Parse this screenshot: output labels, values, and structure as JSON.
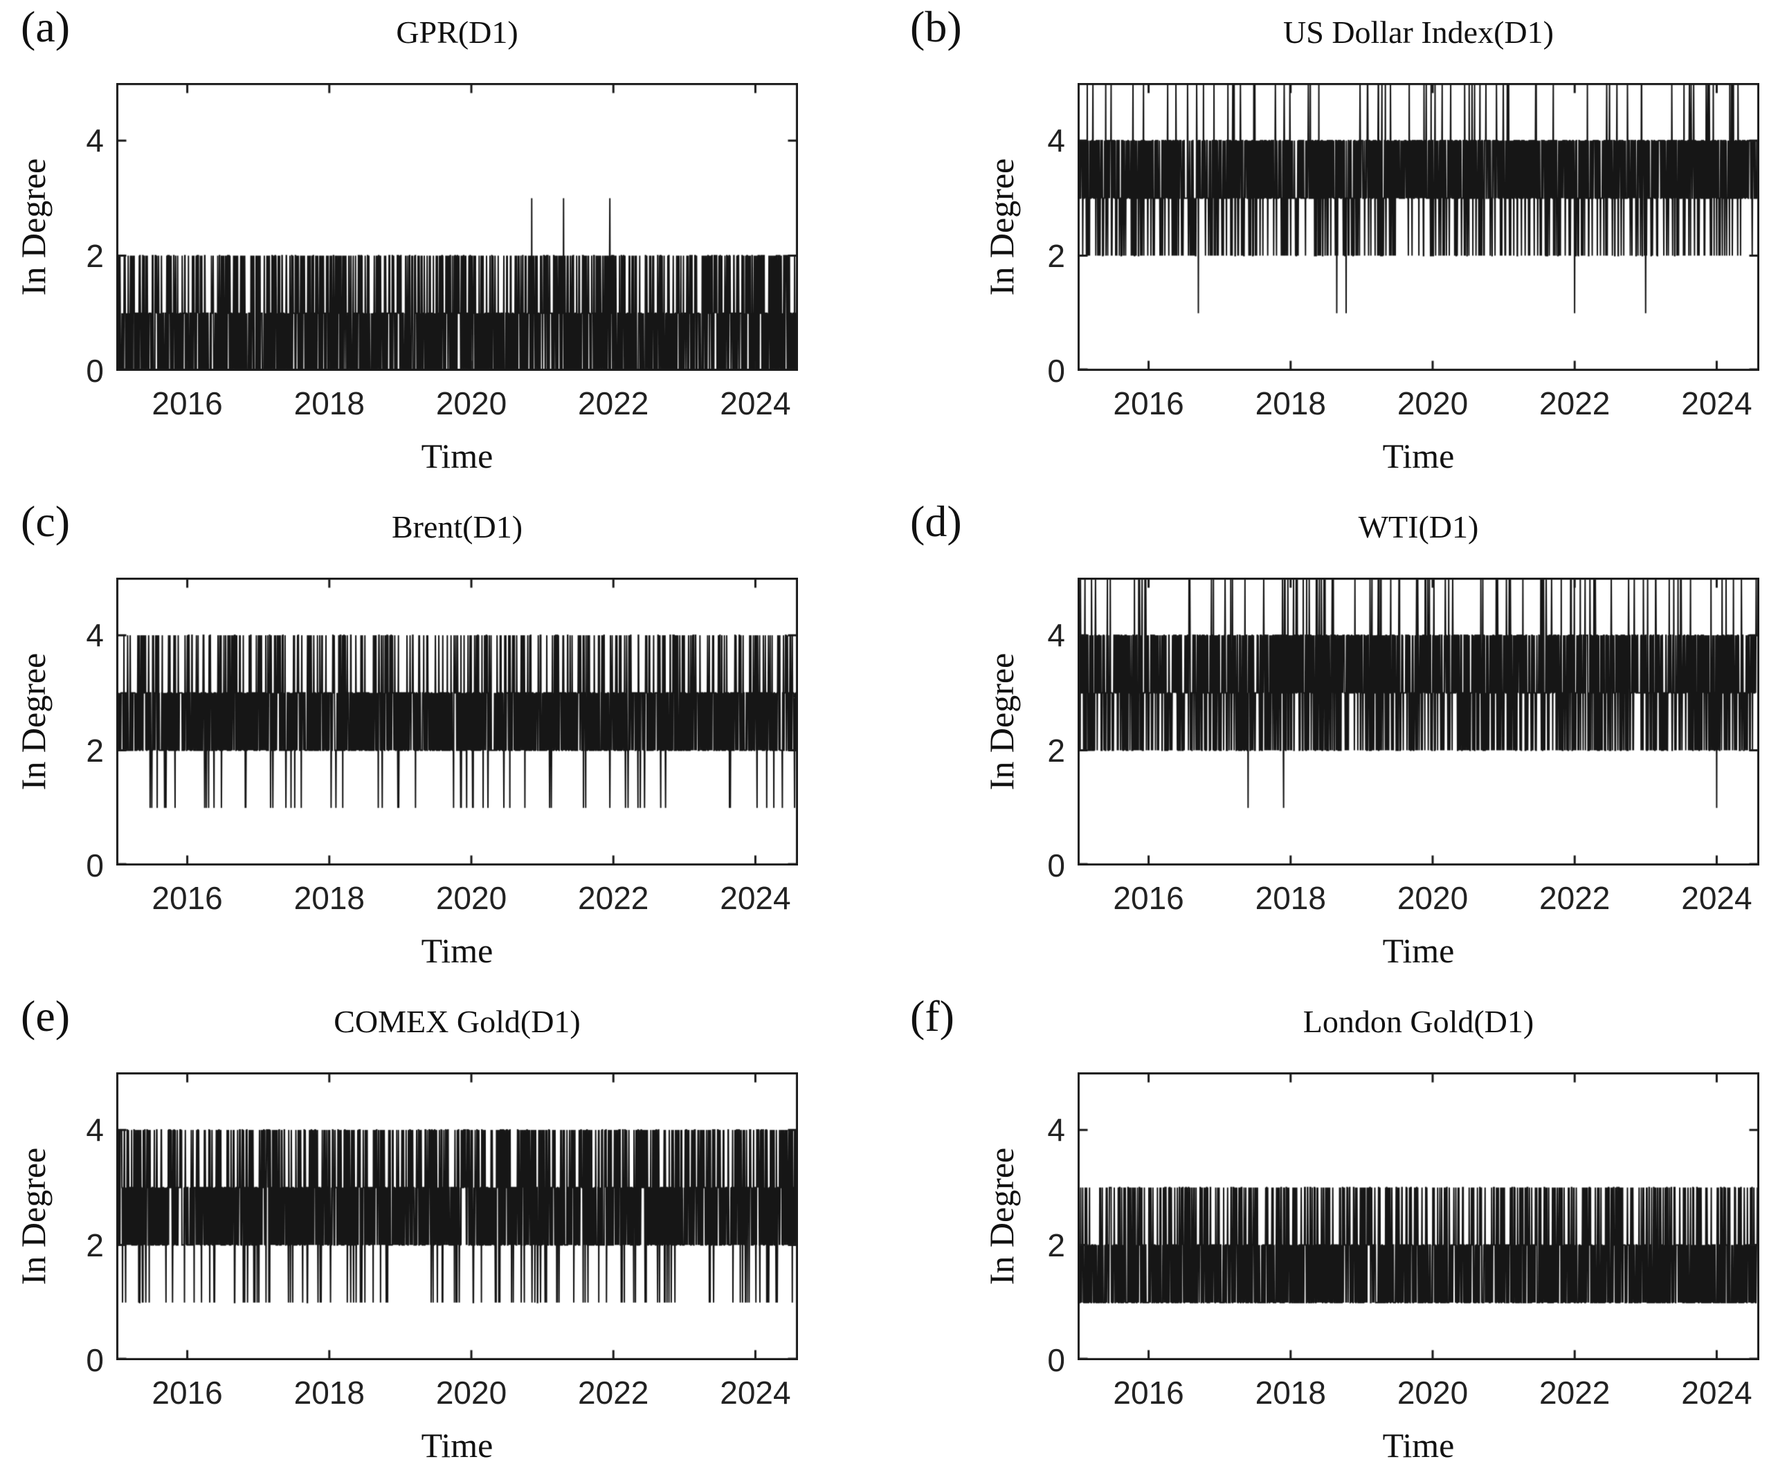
{
  "figure": {
    "background_color": "#ffffff",
    "axis_color": "#1a1a1a",
    "line_color": "#161616",
    "text_color": "#111111",
    "shared": {
      "xlabel": "Time",
      "ylabel": "In Degree",
      "x_ticks": [
        2016,
        2018,
        2020,
        2022,
        2024
      ],
      "y_ticks": [
        0,
        2,
        4
      ],
      "xlim": [
        2015.0,
        2024.6
      ],
      "ylim": [
        0,
        5
      ],
      "grid": false,
      "legend": "none"
    }
  },
  "chart_data": [
    {
      "id": "a",
      "type": "line",
      "letter": "(a)",
      "title": "GPR(D1)",
      "xlabel": "Time",
      "ylabel": "In Degree",
      "x_ticks": [
        2016,
        2018,
        2020,
        2022,
        2024
      ],
      "y_ticks": [
        0,
        2,
        4
      ],
      "xlim": [
        2015.0,
        2024.6
      ],
      "ylim": [
        0,
        5
      ],
      "pattern": "daily integer in-degree oscillating densely between 0 and 2; three isolated peaks reaching 3 near 2020.9, 2021.3 and 2022.0",
      "levels": [
        0,
        1,
        2
      ],
      "weights": [
        0.42,
        0.36,
        0.22
      ],
      "events": [
        {
          "x": 2020.85,
          "y": 3
        },
        {
          "x": 2021.3,
          "y": 3
        },
        {
          "x": 2021.95,
          "y": 3
        }
      ],
      "n_points": 2400,
      "seed": 101
    },
    {
      "id": "b",
      "type": "line",
      "letter": "(b)",
      "title": "US Dollar Index(D1)",
      "xlabel": "Time",
      "ylabel": "In Degree",
      "x_ticks": [
        2016,
        2018,
        2020,
        2022,
        2024
      ],
      "y_ticks": [
        0,
        2,
        4
      ],
      "xlim": [
        2015.0,
        2024.6
      ],
      "ylim": [
        0,
        5
      ],
      "pattern": "solid band between 3 and 4 with frequent thin drops to 2, sparse spikes to 5 touching the top frame, and rare dips to 1",
      "levels": [
        2,
        3,
        4,
        5
      ],
      "weights": [
        0.13,
        0.42,
        0.42,
        0.03
      ],
      "events": [
        {
          "x": 2016.7,
          "y": 1
        },
        {
          "x": 2018.65,
          "y": 1
        },
        {
          "x": 2018.78,
          "y": 1
        },
        {
          "x": 2022.0,
          "y": 1
        },
        {
          "x": 2023.0,
          "y": 1
        }
      ],
      "n_points": 2400,
      "seed": 102
    },
    {
      "id": "c",
      "type": "line",
      "letter": "(c)",
      "title": "Brent(D1)",
      "xlabel": "Time",
      "ylabel": "In Degree",
      "x_ticks": [
        2016,
        2018,
        2020,
        2022,
        2024
      ],
      "y_ticks": [
        0,
        2,
        4
      ],
      "xlim": [
        2015.0,
        2024.6
      ],
      "ylim": [
        0,
        5
      ],
      "pattern": "solid band between 2 and 3 with frequent thin spikes to 4 and occasional dips to 1",
      "levels": [
        1,
        2,
        3,
        4
      ],
      "weights": [
        0.025,
        0.43,
        0.415,
        0.13
      ],
      "events": [],
      "n_points": 2400,
      "seed": 103
    },
    {
      "id": "d",
      "type": "line",
      "letter": "(d)",
      "title": "WTI(D1)",
      "xlabel": "Time",
      "ylabel": "In Degree",
      "x_ticks": [
        2016,
        2018,
        2020,
        2022,
        2024
      ],
      "y_ticks": [
        0,
        2,
        4
      ],
      "xlim": [
        2015.0,
        2024.6
      ],
      "ylim": [
        0,
        5
      ],
      "pattern": "dense band between 2 and 4 with frequent spikes to 5 touching the top frame and rare dips to 1 near 2017.4, 2017.9 and 2024.0",
      "levels": [
        2,
        3,
        4,
        5
      ],
      "weights": [
        0.24,
        0.37,
        0.35,
        0.04
      ],
      "events": [
        {
          "x": 2017.4,
          "y": 1
        },
        {
          "x": 2017.9,
          "y": 1
        },
        {
          "x": 2024.0,
          "y": 1
        }
      ],
      "n_points": 2400,
      "seed": 104
    },
    {
      "id": "e",
      "type": "line",
      "letter": "(e)",
      "title": "COMEX Gold(D1)",
      "xlabel": "Time",
      "ylabel": "In Degree",
      "x_ticks": [
        2016,
        2018,
        2020,
        2022,
        2024
      ],
      "y_ticks": [
        0,
        2,
        4
      ],
      "xlim": [
        2015.0,
        2024.6
      ],
      "ylim": [
        0,
        5
      ],
      "pattern": "dense band between 2 and 4 (solid 2-3, frequent 4) with scattered dips to 1",
      "levels": [
        1,
        2,
        3,
        4
      ],
      "weights": [
        0.05,
        0.37,
        0.37,
        0.21
      ],
      "events": [],
      "n_points": 2400,
      "seed": 105
    },
    {
      "id": "f",
      "type": "line",
      "letter": "(f)",
      "title": "London Gold(D1)",
      "xlabel": "Time",
      "ylabel": "In Degree",
      "x_ticks": [
        2016,
        2018,
        2020,
        2022,
        2024
      ],
      "y_ticks": [
        0,
        2,
        4
      ],
      "xlim": [
        2015.0,
        2024.6
      ],
      "ylim": [
        0,
        5
      ],
      "pattern": "solid band between 1 and 2 with frequent thin spikes to 3; never drops to 0",
      "levels": [
        1,
        2,
        3
      ],
      "weights": [
        0.45,
        0.37,
        0.18
      ],
      "events": [],
      "n_points": 2400,
      "seed": 106
    }
  ]
}
